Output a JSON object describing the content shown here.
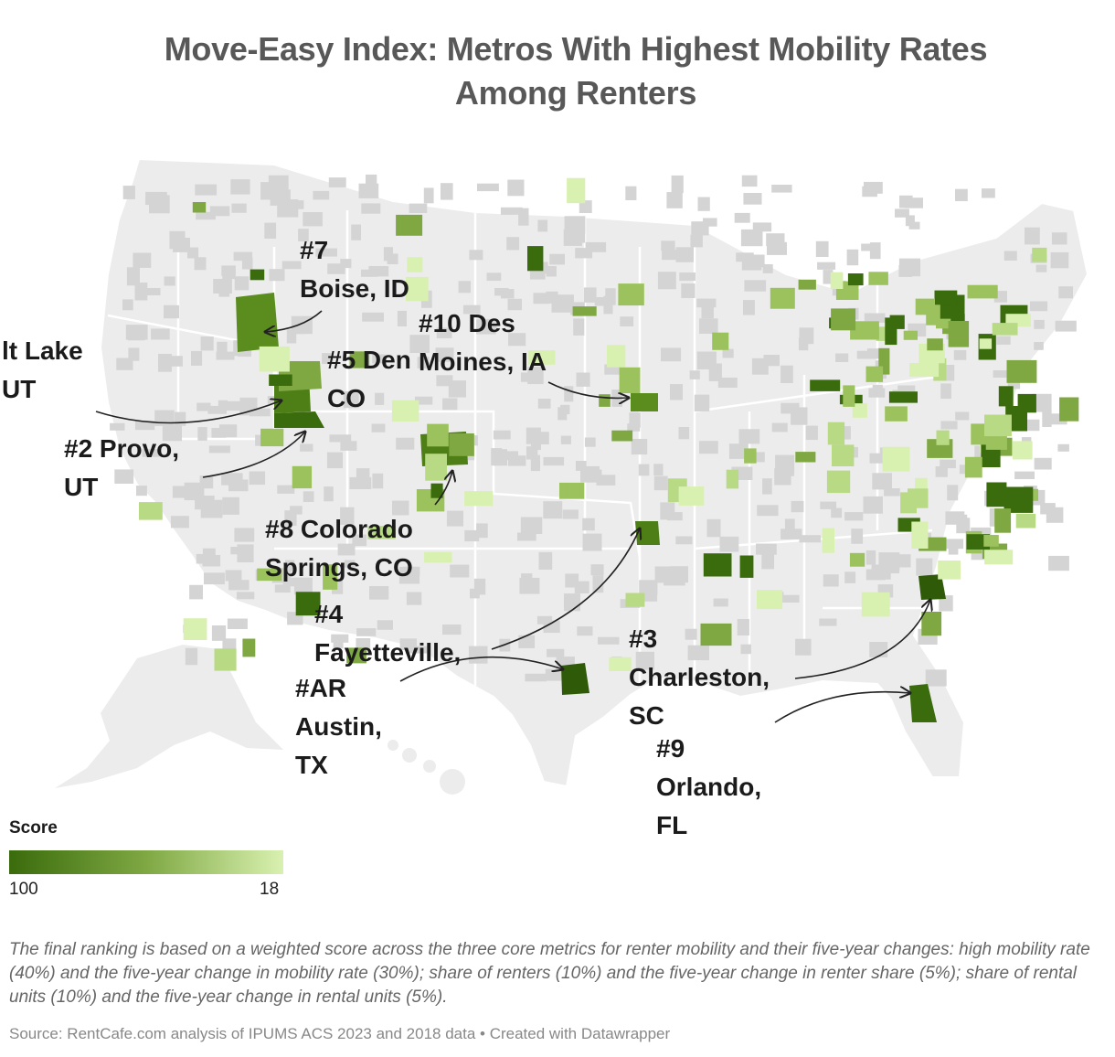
{
  "title_lines": [
    "Move-Easy Index: Metros With Highest Mobility Rates",
    "Among Renters"
  ],
  "legend": {
    "title": "Score",
    "min_label": "100",
    "max_label": "18",
    "color_dark": "#3a6b0c",
    "color_mid": "#7fa843",
    "color_light": "#d9f1b0"
  },
  "labels": {
    "boise": [
      "#7",
      "Boise, ID"
    ],
    "des_moines": [
      "#10 Des",
      "Moines, IA"
    ],
    "salt_lake": [
      "lt Lake",
      "UT"
    ],
    "denver": [
      "#5 Den",
      "CO"
    ],
    "provo": [
      "#2 Provo,",
      "UT"
    ],
    "colorado_springs": [
      "#8 Colorado",
      "Springs, CO"
    ],
    "fayetteville": [
      "#4",
      "Fayetteville,"
    ],
    "austin": [
      "#AR",
      "Austin,",
      "TX"
    ],
    "charleston": [
      "#3",
      "Charleston,",
      "SC"
    ],
    "orlando": [
      "#9",
      "Orlando,",
      "FL"
    ]
  },
  "notes": "The final ranking is based on a weighted score across the three core metrics for renter mobility and their five-year changes: high mobility rate (40%) and the five-year change in mobility rate (30%); share of renters (10%) and the five-year change in renter share (5%); share of rental units (10%) and the five-year change in rental units (5%).",
  "source": "Source: RentCafe.com analysis of IPUMS ACS 2023 and 2018 data • Created with Datawrapper",
  "colors": {
    "land": "#ececec",
    "county_gray": "#d4d4d4",
    "border": "#ffffff"
  }
}
